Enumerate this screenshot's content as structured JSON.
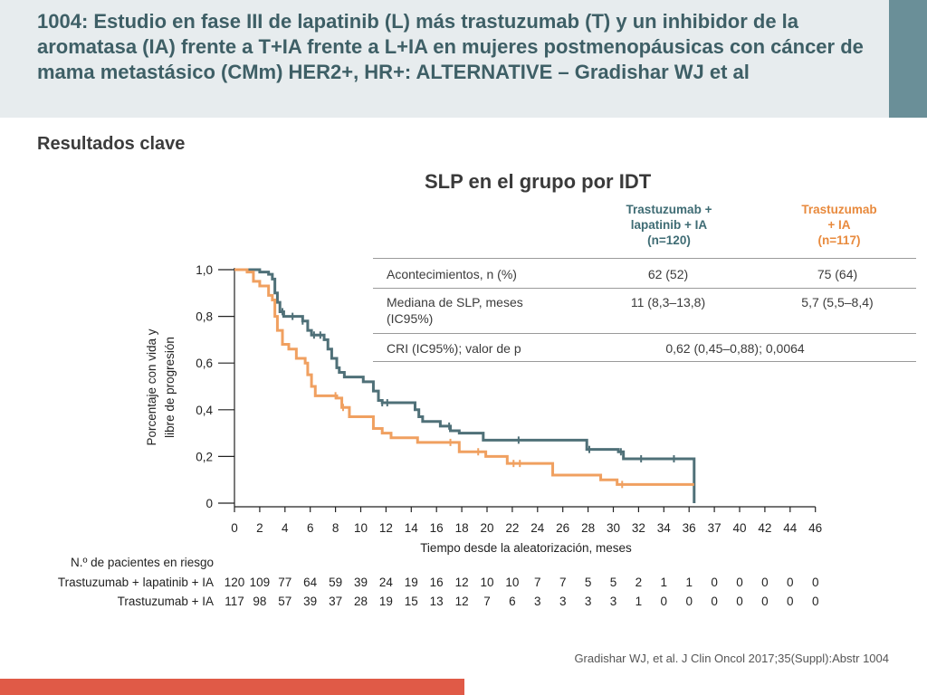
{
  "header": {
    "title": "1004: Estudio en fase III de lapatinib (L) más trastuzumab (T) y un inhibidor de la aromatasa (IA) frente a T+IA frente a L+IA en mujeres postmenopáusicas con cáncer de mama metastásico (CMm) HER2+, HR+: ALTERNATIVE – Gradishar WJ et al",
    "subtitle": "Resultados clave"
  },
  "colors": {
    "tl": "#4f7078",
    "t": "#f0a060",
    "accent": "#6a8f98",
    "footer": "#e05a47"
  },
  "table": {
    "headers": [
      "Trastuzumab + lapatinib + IA (n=120)",
      "Trastuzumab + IA (n=117)"
    ],
    "header_lines": {
      "tl": [
        "Trastuzumab +",
        "lapatinib + IA",
        "(n=120)"
      ],
      "t": [
        "Trastuzumab",
        "+ IA",
        "(n=117)"
      ]
    },
    "rows": [
      {
        "label": "Acontecimientos, n (%)",
        "a": "62 (52)",
        "b": "75 (64)"
      },
      {
        "label_lines": [
          "Mediana de SLP, meses",
          "(IC95%)"
        ],
        "a": "11 (8,3–13,8)",
        "b": "5,7 (5,5–8,4)"
      },
      {
        "label": "CRI (IC95%); valor de p",
        "span": "0,62 (0,45–0,88); 0,0064"
      }
    ]
  },
  "chart_data": {
    "type": "line",
    "title": "SLP en el grupo por IDT",
    "xlabel": "Tiempo desde la aleatorización, meses",
    "ylabel": "Porcentaje con vida y libre de progresión",
    "xticks": [
      "0",
      "2",
      "4",
      "6",
      "8",
      "10",
      "12",
      "14",
      "16",
      "18",
      "20",
      "22",
      "24",
      "26",
      "28",
      "30",
      "32",
      "34",
      "36",
      "37",
      "40",
      "42",
      "44",
      "46"
    ],
    "yticks": [
      "0",
      "0,2",
      "0,4",
      "0,6",
      "0,8",
      "1,0"
    ],
    "ylim": [
      0,
      1
    ],
    "series": [
      {
        "name": "Trastuzumab + lapatinib + IA",
        "color": "#4f7078",
        "points": [
          [
            0,
            1.0
          ],
          [
            2,
            0.99
          ],
          [
            2.7,
            0.98
          ],
          [
            3,
            0.96
          ],
          [
            3.2,
            0.9
          ],
          [
            3.4,
            0.86
          ],
          [
            3.6,
            0.82
          ],
          [
            3.9,
            0.8
          ],
          [
            5.4,
            0.78
          ],
          [
            5.8,
            0.74
          ],
          [
            6.1,
            0.72
          ],
          [
            7.1,
            0.7
          ],
          [
            7.4,
            0.66
          ],
          [
            7.7,
            0.62
          ],
          [
            8.1,
            0.58
          ],
          [
            8.3,
            0.56
          ],
          [
            8.7,
            0.54
          ],
          [
            10.2,
            0.52
          ],
          [
            11.0,
            0.48
          ],
          [
            11.4,
            0.44
          ],
          [
            11.7,
            0.43
          ],
          [
            14.3,
            0.4
          ],
          [
            14.6,
            0.37
          ],
          [
            14.9,
            0.35
          ],
          [
            16.3,
            0.33
          ],
          [
            17.1,
            0.31
          ],
          [
            17.8,
            0.3
          ],
          [
            19.7,
            0.27
          ],
          [
            27.9,
            0.23
          ],
          [
            30.4,
            0.22
          ],
          [
            30.8,
            0.19
          ],
          [
            36.2,
            0.0
          ]
        ],
        "censor_times": [
          3.8,
          4.6,
          5.4,
          6.3,
          6.8,
          11.7,
          12.1,
          17.0,
          22.5,
          28.1,
          30.6,
          32.2,
          34.8
        ]
      },
      {
        "name": "Trastuzumab + IA",
        "color": "#f0a060",
        "points": [
          [
            0,
            1.0
          ],
          [
            1.0,
            0.99
          ],
          [
            1.5,
            0.95
          ],
          [
            2.0,
            0.93
          ],
          [
            2.7,
            0.89
          ],
          [
            3.0,
            0.87
          ],
          [
            3.2,
            0.8
          ],
          [
            3.4,
            0.74
          ],
          [
            3.8,
            0.68
          ],
          [
            4.3,
            0.66
          ],
          [
            4.9,
            0.62
          ],
          [
            5.6,
            0.6
          ],
          [
            5.8,
            0.55
          ],
          [
            6.1,
            0.5
          ],
          [
            6.4,
            0.46
          ],
          [
            8.1,
            0.45
          ],
          [
            8.5,
            0.41
          ],
          [
            9.1,
            0.37
          ],
          [
            11.0,
            0.32
          ],
          [
            11.7,
            0.3
          ],
          [
            12.4,
            0.28
          ],
          [
            14.5,
            0.26
          ],
          [
            17.8,
            0.22
          ],
          [
            19.9,
            0.2
          ],
          [
            21.6,
            0.17
          ],
          [
            25.2,
            0.12
          ],
          [
            29.0,
            0.1
          ],
          [
            30.3,
            0.08
          ],
          [
            36.2,
            0.08
          ]
        ],
        "censor_times": [
          8.0,
          8.6,
          17.1,
          19.3,
          22.1,
          22.6,
          30.7
        ]
      }
    ],
    "risk_table": {
      "title": "N.º de pacientes en riesgo",
      "rows": [
        {
          "label": "Trastuzumab + lapatinib + IA",
          "values": [
            "120",
            "109",
            "77",
            "64",
            "59",
            "39",
            "24",
            "19",
            "16",
            "12",
            "10",
            "10",
            "7",
            "7",
            "5",
            "5",
            "2",
            "1",
            "1",
            "0",
            "0",
            "0",
            "0",
            "0"
          ]
        },
        {
          "label": "Trastuzumab + IA",
          "values": [
            "117",
            "98",
            "57",
            "39",
            "37",
            "28",
            "19",
            "15",
            "13",
            "12",
            "7",
            "6",
            "3",
            "3",
            "3",
            "3",
            "1",
            "0",
            "0",
            "0",
            "0",
            "0",
            "0",
            "0"
          ]
        }
      ]
    }
  },
  "source": "Gradishar WJ, et al. J Clin Oncol 2017;35(Suppl):Abstr 1004"
}
